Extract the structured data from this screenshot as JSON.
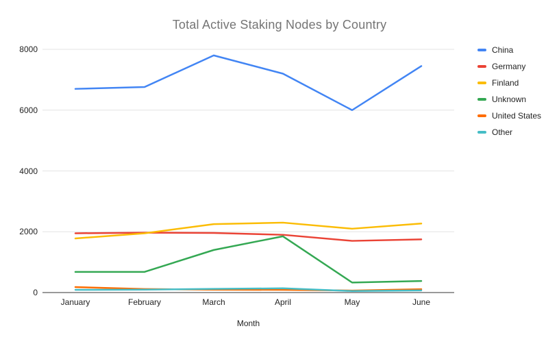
{
  "colors": {
    "background": "#ffffff",
    "title_text": "#757575",
    "axis_text": "#222222",
    "gridline": "#e3e3e3",
    "axis_line": "#333333"
  },
  "chart_data": {
    "type": "line",
    "title": "Total Active Staking Nodes by Country",
    "xlabel": "Month",
    "ylabel": "",
    "categories": [
      "January",
      "February",
      "March",
      "April",
      "May",
      "June"
    ],
    "y_ticks": [
      8000,
      6000,
      4000,
      2000,
      0
    ],
    "ylim": [
      0,
      8000
    ],
    "grid": true,
    "legend_position": "right",
    "series": [
      {
        "name": "China",
        "color": "#4285f4",
        "values": [
          6700,
          6760,
          7800,
          7200,
          6000,
          7450
        ]
      },
      {
        "name": "Germany",
        "color": "#ea4335",
        "values": [
          1950,
          1970,
          1960,
          1900,
          1700,
          1750
        ]
      },
      {
        "name": "Finland",
        "color": "#fbbc04",
        "values": [
          1780,
          1950,
          2250,
          2300,
          2100,
          2270
        ]
      },
      {
        "name": "Unknown",
        "color": "#34a853",
        "values": [
          680,
          680,
          1400,
          1850,
          330,
          380
        ]
      },
      {
        "name": "United States",
        "color": "#ff6d01",
        "values": [
          180,
          115,
          95,
          90,
          65,
          110
        ]
      },
      {
        "name": "Other",
        "color": "#46bdc6",
        "values": [
          90,
          95,
          120,
          140,
          50,
          70
        ]
      }
    ]
  }
}
